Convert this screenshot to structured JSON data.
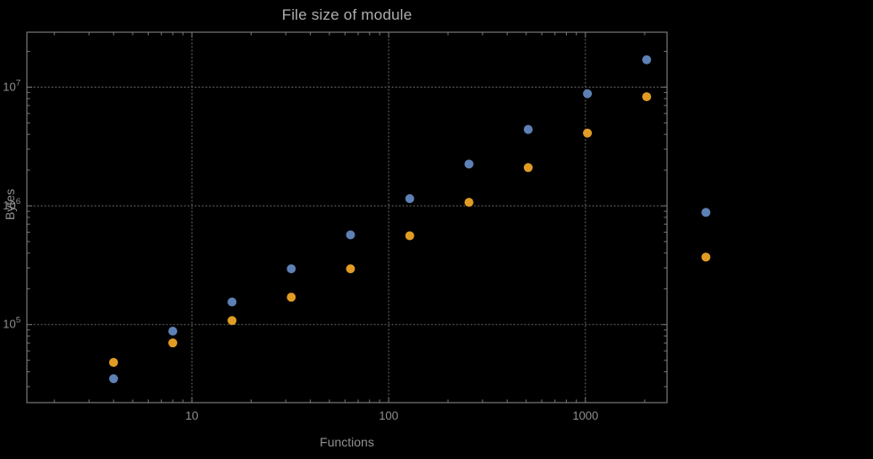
{
  "chart_data": {
    "type": "scatter",
    "title": "File size of module",
    "xlabel": "Functions",
    "ylabel": "Bytes",
    "xscale": "log",
    "yscale": "log",
    "xlim": [
      1.45,
      2600
    ],
    "ylim": [
      22000,
      29000000
    ],
    "xticks": [
      10,
      100,
      1000
    ],
    "yticks": [
      100000,
      1000000,
      10000000
    ],
    "grid": "dotted at major ticks",
    "legend": "none",
    "x": [
      4,
      8,
      16,
      32,
      64,
      128,
      256,
      512,
      1024,
      2048,
      4096
    ],
    "series": [
      {
        "color": "#5e81b5",
        "values": [
          35000,
          88000,
          155000,
          295000,
          570000,
          1150000,
          2250000,
          4400000,
          8800000,
          17000000,
          880000
        ]
      },
      {
        "color": "#e19c24",
        "values": [
          48000,
          70000,
          108000,
          170000,
          295000,
          560000,
          1070000,
          2100000,
          4100000,
          8300000,
          370000
        ]
      }
    ],
    "colors": {
      "background": "#000000",
      "frame": "#787878",
      "grid": "#6a6a6a",
      "tick_labels": "#8f8f8f",
      "axis_labels": "#8f8f8f",
      "title": "#aeaeae"
    }
  }
}
